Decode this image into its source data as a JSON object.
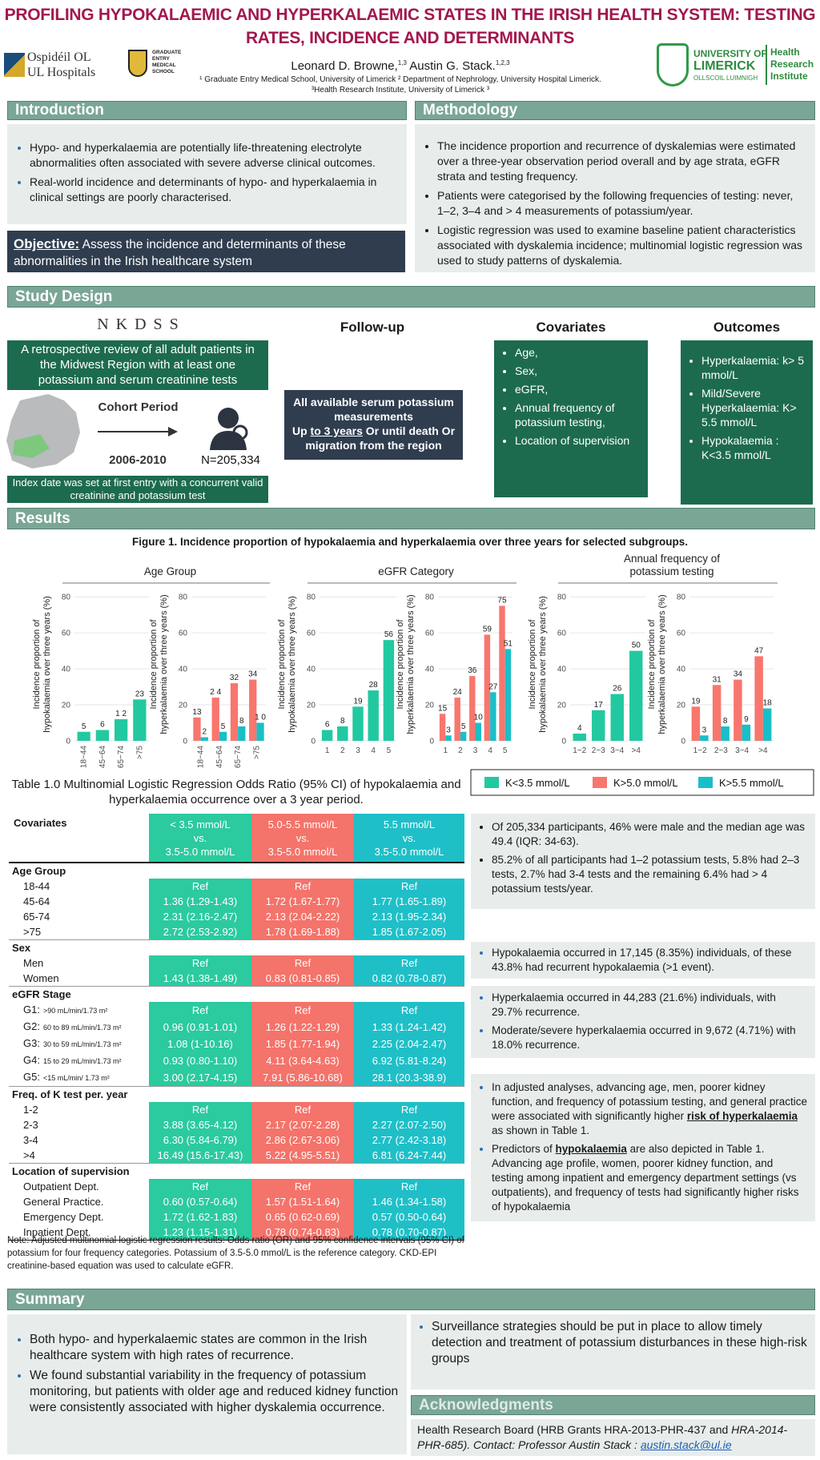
{
  "header": {
    "title": "PROFILING HYPOKALAEMIC AND HYPERKALAEMIC STATES IN THE IRISH HEALTH SYSTEM: TESTING RATES, INCIDENCE AND DETERMINANTS",
    "author1": "Leonard D. Browne,",
    "author1_sup": "1,3",
    "author2": " Austin G. Stack.",
    "author2_sup": "1,2,3",
    "affiliation1": "¹ Graduate Entry Medical School, University of Limerick ² Department of Nephrology, University Hospital Limerick.",
    "affiliation2": "³Health Research Institute, University of Limerick ³",
    "logos": {
      "hospital_line1": "Ospidéil OL",
      "hospital_line2": "UL Hospitals",
      "gems": [
        "GRADUATE",
        "ENTRY",
        "MEDICAL",
        "SCHOOL"
      ],
      "ul_line1": "UNIVERSITY OF",
      "ul_line2": "LIMERICK",
      "ul_line3": "OLLSCOIL LUIMNIGH",
      "hri": [
        "Health",
        "Research",
        "Institute"
      ]
    }
  },
  "introduction": {
    "heading": "Introduction",
    "bullets": [
      "Hypo- and hyperkalaemia are potentially life-threatening electrolyte abnormalities often associated with severe adverse clinical outcomes.",
      "Real-world incidence and determinants of hypo- and hyperkalaemia in clinical settings are poorly characterised."
    ],
    "objective_label": "Objective:",
    "objective_text": "Assess the incidence and determinants of these abnormalities in the Irish healthcare system"
  },
  "methodology": {
    "heading": "Methodology",
    "bullets": [
      "The incidence proportion and recurrence of dyskalemias were estimated over a three-year observation period overall and by age strata, eGFR strata and testing frequency.",
      "Patients  were categorised  by the following frequencies of testing: never, 1–2, 3–4 and > 4 measurements of potassium/year.",
      "Logistic regression was used to examine baseline patient characteristics associated with dyskalemia incidence;  multinomial logistic regression was used to study patterns of dyskalemia."
    ]
  },
  "study_design": {
    "heading": "Study Design",
    "logo": "N K D S S",
    "retrospective": "A retrospective review of all adult patients in the Midwest Region with at least one potassium and serum creatinine tests",
    "cohort_period": "Cohort Period",
    "years": "2006-2010",
    "n": "N=205,334",
    "index_date": "Index date was set at first entry with a concurrent valid creatinine and potassium test",
    "follow_up": "Follow-up",
    "follow_up_line1": "All available serum potassium measurements",
    "follow_up_up": "Up ",
    "follow_up_period": "to  3 years",
    "follow_up_rest": " Or until death Or migration from the region",
    "covariates_heading": "Covariates",
    "covariates": [
      "Age,",
      "Sex,",
      "eGFR,",
      "Annual frequency of potassium testing,",
      "Location of supervision"
    ],
    "outcomes_heading": "Outcomes",
    "outcomes": [
      "Hyperkalaemia: k> 5 mmol/L",
      "Mild/Severe Hyperkalaemia: K> 5.5 mmol/L",
      "Hypokalaemia : K<3.5 mmol/L"
    ]
  },
  "results": {
    "heading": "Results",
    "figure_title": "Figure 1. Incidence proportion of  hypokalaemia and hyperkalaemia over three years for selected subgroups.",
    "box1": [
      "Of 205,334 participants, 46% were male and the median age was 49.4 (IQR: 34-63).",
      "85.2% of all participants had 1–2 potassium tests, 5.8% had 2–3 tests, 2.7% had 3-4 tests and the remaining 6.4% had > 4 potassium tests/year."
    ],
    "box2": [
      "Hypokalaemia occurred in 17,145 (8.35%) individuals, of these 43.8% had recurrent hypokalaemia    (>1 event)."
    ],
    "box3": [
      "Hyperkalaemia occurred in 44,283 (21.6%) individuals, with 29.7% recurrence.",
      "Moderate/severe hyperkalaemia occurred in 9,672 (4.71%) with 18.0% recurrence."
    ],
    "box4_b1": [
      "In adjusted analyses, advancing age, men, poorer kidney function, and frequency of potassium testing, and general practice were associated with significantly higher ",
      "risk of hyperkalaemia ",
      "as shown in Table 1."
    ],
    "box4_b2": [
      "Predictors of ",
      "hypokalaemia",
      " are also depicted in Table 1. Advancing age profile, women, poorer kidney function, and testing among inpatient and emergency department settings (vs outpatients), and frequency of tests had significantly higher risks of hypokalaemia"
    ]
  },
  "chart_data": [
    {
      "type": "bar",
      "title": "Age Group",
      "y_label": [
        "Incidence proportion of",
        "hypokalaemia over three years (%)"
      ],
      "categories": [
        "18−44",
        "45−64",
        "65−74",
        ">75"
      ],
      "series": [
        {
          "name": "K<3.5 mmol/L",
          "color": "#22c9a0",
          "values": [
            5,
            6,
            12,
            23
          ],
          "value_labels": [
            "5",
            "6",
            "1 2",
            "23"
          ]
        }
      ],
      "ylim": [
        0,
        85
      ],
      "yticks": [
        0,
        20,
        40,
        60,
        80
      ],
      "grid": true
    },
    {
      "type": "bar",
      "y_label": [
        "Incidence proportion of",
        "hyperkalaemia over three years (%)"
      ],
      "categories": [
        "18−44",
        "45−64",
        "65−74",
        ">75"
      ],
      "series": [
        {
          "name": "K>5.0 mmol/L",
          "color": "#f8766d",
          "values": [
            13,
            24,
            32,
            34
          ],
          "value_labels": [
            "13",
            "2 4",
            "32",
            "34"
          ]
        },
        {
          "name": "K>5.5 mmol/L",
          "color": "#19bfc8",
          "values": [
            2,
            5,
            8,
            10
          ],
          "value_labels": [
            "2",
            "5",
            "8",
            "1 0"
          ]
        }
      ],
      "ylim": [
        0,
        85
      ],
      "yticks": [
        0,
        20,
        40,
        60,
        80
      ],
      "grid": true
    },
    {
      "type": "bar",
      "title": "eGFR Category",
      "y_label": [
        "Incidence proportion of",
        "hypokalaemia over three years (%)"
      ],
      "categories": [
        "1",
        "2",
        "3",
        "4",
        "5"
      ],
      "series": [
        {
          "color": "#22c9a0",
          "values": [
            6,
            8,
            19,
            28,
            56
          ]
        }
      ],
      "ylim": [
        0,
        85
      ],
      "yticks": [
        0,
        20,
        40,
        60,
        80
      ],
      "grid": true
    },
    {
      "type": "bar",
      "y_label": [
        "Incidence proportion of",
        "hyperkalaemia over three years (%)"
      ],
      "categories": [
        "1",
        "2",
        "3",
        "4",
        "5"
      ],
      "series": [
        {
          "color": "#f8766d",
          "values": [
            15,
            24,
            36,
            59,
            75
          ]
        },
        {
          "color": "#19bfc8",
          "values": [
            3,
            5,
            10,
            27,
            51
          ]
        }
      ],
      "ylim": [
        0,
        85
      ],
      "yticks": [
        0,
        20,
        40,
        60,
        80
      ],
      "grid": true
    },
    {
      "type": "bar",
      "title": "Annual frequency of potassium testing",
      "y_label": [
        "Incidence proportion of",
        "hypokalaemia over three years (%)"
      ],
      "categories": [
        "1−2",
        "2−3",
        "3−4",
        ">4"
      ],
      "series": [
        {
          "color": "#22c9a0",
          "values": [
            4,
            17,
            26,
            50
          ]
        }
      ],
      "ylim": [
        0,
        85
      ],
      "yticks": [
        0,
        20,
        40,
        60,
        80
      ],
      "grid": true
    },
    {
      "type": "bar",
      "y_label": [
        "Incidence proportion of",
        "hyperkalaemia over three years (%)"
      ],
      "categories": [
        "1−2",
        "2−3",
        "3−4",
        ">4"
      ],
      "series": [
        {
          "color": "#f8766d",
          "values": [
            19,
            31,
            34,
            47
          ]
        },
        {
          "color": "#19bfc8",
          "values": [
            3,
            8,
            9,
            18
          ]
        }
      ],
      "ylim": [
        0,
        85
      ],
      "yticks": [
        0,
        20,
        40,
        60,
        80
      ],
      "grid": true
    }
  ],
  "table": {
    "caption": "Table 1.0 Multinomial Logistic Regression Odds Ratio (95% CI) of  hypokalaemia and hyperkalaemia occurrence over a 3 year period.",
    "columns": [
      "Covariates",
      [
        "< 3.5 mmol/L",
        "vs.",
        "3.5-5.0 mmol/L"
      ],
      [
        "5.0-5.5 mmol/L",
        "vs.",
        "3.5-5.0 mmol/L"
      ],
      [
        "5.5 mmol/L",
        "vs.",
        "3.5-5.0 mmol/L"
      ]
    ],
    "sections": [
      {
        "title": "Age Group",
        "labels": [
          "18-44",
          "45-64",
          "65-74",
          ">75"
        ],
        "values": [
          [
            "Ref",
            "Ref",
            "Ref"
          ],
          [
            "1.36 (1.29-1.43)",
            "1.72 (1.67-1.77)",
            "1.77 (1.65-1.89)"
          ],
          [
            "2.31 (2.16-2.47)",
            "2.13 (2.04-2.22)",
            "2.13 (1.95-2.34)"
          ],
          [
            "2.72 (2.53-2.92)",
            "1.78 (1.69-1.88)",
            "1.85 (1.67-2.05)"
          ]
        ]
      },
      {
        "title": "Sex",
        "labels": [
          "Men",
          "Women"
        ],
        "values": [
          [
            "Ref",
            "Ref",
            "Ref"
          ],
          [
            "1.43 (1.38-1.49)",
            "0.83 (0.81-0.85)",
            "0.82 (0.78-0.87)"
          ]
        ]
      },
      {
        "title": "eGFR Stage",
        "labels": [
          "G1:",
          "G2:",
          "G3:",
          "G4:",
          "G5:"
        ],
        "sublabels": [
          ">90 mL/min/1.73 m²",
          "60 to 89 mL/min/1.73 m²",
          "30 to 59 mL/min/1.73 m²",
          "15 to 29 mL/min/1.73 m²",
          "<15 mL/min/ 1.73 m²"
        ],
        "values": [
          [
            "Ref",
            "Ref",
            "Ref"
          ],
          [
            "0.96 (0.91-1.01)",
            "1.26 (1.22-1.29)",
            "1.33 (1.24-1.42)"
          ],
          [
            "1.08 (1-10.16)",
            "1.85 (1.77-1.94)",
            "2.25 (2.04-2.47)"
          ],
          [
            "0.93 (0.80-1.10)",
            "4.11 (3.64-4.63)",
            "6.92 (5.81-8.24)"
          ],
          [
            "3.00 (2.17-4.15)",
            "7.91 (5.86-10.68)",
            "28.1 (20.3-38.9)"
          ]
        ]
      },
      {
        "title": "Freq. of  K test per. year",
        "labels": [
          "1-2",
          "2-3",
          "3-4",
          ">4"
        ],
        "values": [
          [
            "Ref",
            "Ref",
            "Ref"
          ],
          [
            "3.88 (3.65-4.12)",
            "2.17 (2.07-2.28)",
            "2.27 (2.07-2.50)"
          ],
          [
            "6.30 (5.84-6.79)",
            "2.86 (2.67-3.06)",
            "2.77 (2.42-3.18)"
          ],
          [
            "16.49 (15.6-17.43)",
            "5.22 (4.95-5.51)",
            "6.81 (6.24-7.44)"
          ]
        ]
      },
      {
        "title": "Location of supervision",
        "labels": [
          "Outpatient Dept.",
          "General Practice.",
          "Emergency Dept.",
          "Inpatient Dept."
        ],
        "values": [
          [
            "Ref",
            "Ref",
            "Ref"
          ],
          [
            "0.60 (0.57-0.64)",
            "1.57 (1.51-1.64)",
            "1.46 (1.34-1.58)"
          ],
          [
            "1.72 (1.62-1.83)",
            "0.65 (0.62-0.69)",
            "0.57 (0.50-0.64)"
          ],
          [
            "1.23 (1.15-1.31)",
            "0.78 (0.74-0.83)",
            "0.78 (0.70-0.87)"
          ]
        ]
      }
    ],
    "note": "Note: Adjusted multinomial logistic regression results: Odds ratio (OR) and 95% confidence intervals (95% CI) of potassium for four  frequency categories. Potassium of 3.5-5.0 mmol/L is the reference category. CKD-EPI creatinine-based equation was used to calculate eGFR."
  },
  "summary": {
    "heading": "Summary",
    "bullets": [
      "Both hypo- and hyperkalaemic states are common in the Irish healthcare system with high rates of recurrence.",
      "We found substantial variability in the frequency of potassium monitoring, but patients with older age and reduced kidney function were consistently associated with higher dyskalemia occurrence."
    ],
    "right_bullets": [
      "Surveillance strategies should be put in place to allow timely detection and treatment of potassium disturbances in these high-risk groups"
    ]
  },
  "acknowledgments": {
    "heading": "Acknowledgments",
    "text": "Health Research Board (HRB Grants HRA-2013-PHR-437 and ",
    "text_italic": "HRA-2014-PHR-685).  Contact: Professor Austin Stack : ",
    "email": "austin.stack@ul.ie"
  }
}
